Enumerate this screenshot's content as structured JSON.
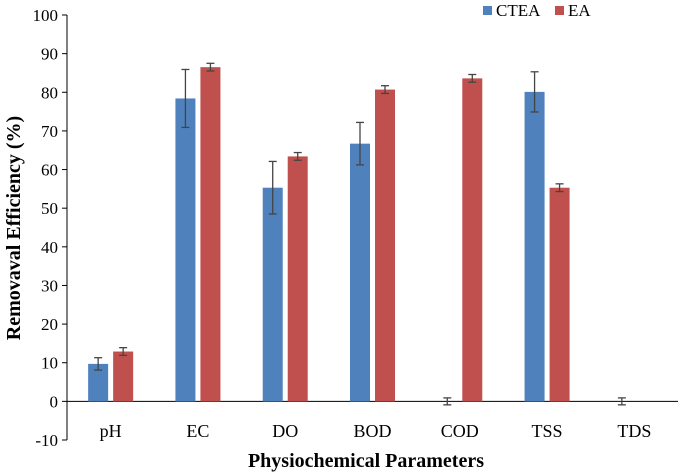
{
  "chart_data": {
    "type": "bar",
    "title": "",
    "xlabel": "Physiochemical Parameters",
    "ylabel": "Removaval Efficiency (%)",
    "ylim": [
      -10,
      100
    ],
    "yticks": [
      -10,
      0,
      10,
      20,
      30,
      40,
      50,
      60,
      70,
      80,
      90,
      100
    ],
    "categories": [
      "pH",
      "EC",
      "DO",
      "BOD",
      "COD",
      "TSS",
      "TDS"
    ],
    "legend_position": "top-right",
    "series": [
      {
        "name": "CTEA",
        "color": "#4f81bd",
        "values": [
          9.7,
          78.4,
          55.3,
          66.7,
          0,
          80.1,
          0
        ],
        "errors": [
          1.6,
          7.5,
          6.8,
          5.5,
          0.9,
          5.2,
          0.9
        ]
      },
      {
        "name": "EA",
        "color": "#c0504d",
        "values": [
          12.9,
          86.5,
          63.4,
          80.7,
          83.6,
          55.3,
          0
        ],
        "errors": [
          1.0,
          1.0,
          1.0,
          1.0,
          1.0,
          1.0,
          0
        ]
      }
    ]
  }
}
